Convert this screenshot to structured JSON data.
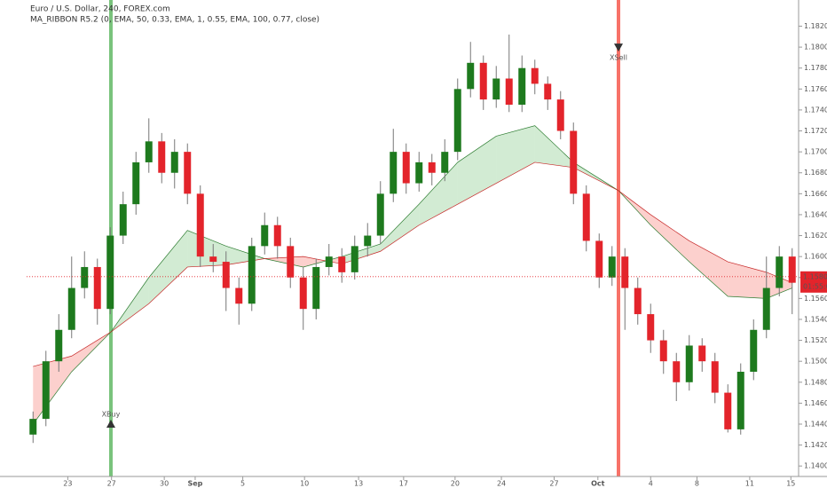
{
  "chart_data": {
    "type": "candlestick",
    "title": "Euro / U.S. Dollar, 240, FOREX.com",
    "subtitle": "MA_RIBBON R5.2 (0, EMA, 50, 0.33, EMA, 1, 0.55, EMA, 100, 0.77, close)",
    "up_color": "#1e7a1e",
    "down_color": "#e3242b",
    "xlim": [
      -0.5,
      59.5
    ],
    "ylim": [
      1.139,
      1.1845
    ],
    "xticks": [
      {
        "value": 2.7,
        "label": "23"
      },
      {
        "value": 6.1,
        "label": "27"
      },
      {
        "value": 10.2,
        "label": "30"
      },
      {
        "value": 12.6,
        "label": "Sep"
      },
      {
        "value": 16.3,
        "label": "5"
      },
      {
        "value": 21.1,
        "label": "10"
      },
      {
        "value": 25.3,
        "label": "13"
      },
      {
        "value": 28.8,
        "label": "17"
      },
      {
        "value": 32.8,
        "label": "20"
      },
      {
        "value": 36.4,
        "label": "24"
      },
      {
        "value": 40.5,
        "label": "27"
      },
      {
        "value": 43.9,
        "label": "Oct"
      },
      {
        "value": 48,
        "label": "4"
      },
      {
        "value": 51.6,
        "label": "8"
      },
      {
        "value": 55.7,
        "label": "11"
      },
      {
        "value": 58.9,
        "label": "15"
      }
    ],
    "yticks": [
      {
        "value": 1.14,
        "label": "1.14000"
      },
      {
        "value": 1.142,
        "label": "1.14200"
      },
      {
        "value": 1.144,
        "label": "1.14400"
      },
      {
        "value": 1.146,
        "label": "1.14600"
      },
      {
        "value": 1.148,
        "label": "1.14800"
      },
      {
        "value": 1.15,
        "label": "1.15000"
      },
      {
        "value": 1.152,
        "label": "1.15200"
      },
      {
        "value": 1.154,
        "label": "1.15400"
      },
      {
        "value": 1.156,
        "label": "1.15600"
      },
      {
        "value": 1.158,
        "label": "1.15800"
      },
      {
        "value": 1.16,
        "label": "1.16000"
      },
      {
        "value": 1.162,
        "label": "1.16200"
      },
      {
        "value": 1.164,
        "label": "1.16400"
      },
      {
        "value": 1.166,
        "label": "1.16600"
      },
      {
        "value": 1.168,
        "label": "1.16800"
      },
      {
        "value": 1.17,
        "label": "1.17000"
      },
      {
        "value": 1.172,
        "label": "1.17200"
      },
      {
        "value": 1.174,
        "label": "1.17400"
      },
      {
        "value": 1.176,
        "label": "1.17600"
      },
      {
        "value": 1.178,
        "label": "1.17800"
      },
      {
        "value": 1.18,
        "label": "1.18000"
      },
      {
        "value": 1.182,
        "label": "1.18200"
      }
    ],
    "open": [
      1.143,
      1.1445,
      1.15,
      1.153,
      1.157,
      1.159,
      1.155,
      1.162,
      1.165,
      1.169,
      1.171,
      1.168,
      1.17,
      1.166,
      1.16,
      1.1595,
      1.157,
      1.1555,
      1.161,
      1.163,
      1.161,
      1.158,
      1.155,
      1.159,
      1.16,
      1.1585,
      1.161,
      1.162,
      1.166,
      1.17,
      1.167,
      1.169,
      1.168,
      1.17,
      1.176,
      1.1785,
      1.175,
      1.177,
      1.1745,
      1.178,
      1.1765,
      1.175,
      1.172,
      1.166,
      1.1615,
      1.158,
      1.16,
      1.157,
      1.1545,
      1.152,
      1.15,
      1.148,
      1.1515,
      1.15,
      1.147,
      1.1435,
      1.149,
      1.153,
      1.157,
      1.16
    ],
    "high": [
      1.1452,
      1.151,
      1.1545,
      1.16,
      1.1605,
      1.1598,
      1.1628,
      1.1662,
      1.17,
      1.1732,
      1.1718,
      1.1712,
      1.1708,
      1.1668,
      1.1612,
      1.1605,
      1.158,
      1.1618,
      1.1642,
      1.1638,
      1.1618,
      1.159,
      1.1598,
      1.1612,
      1.1608,
      1.162,
      1.1632,
      1.1672,
      1.1722,
      1.1708,
      1.17,
      1.1698,
      1.1712,
      1.177,
      1.1805,
      1.1792,
      1.1782,
      1.1812,
      1.1792,
      1.1788,
      1.1772,
      1.1758,
      1.1728,
      1.1668,
      1.1622,
      1.161,
      1.1608,
      1.158,
      1.1555,
      1.153,
      1.1508,
      1.1525,
      1.1522,
      1.1508,
      1.1478,
      1.1498,
      1.154,
      1.16,
      1.161,
      1.1608
    ],
    "low": [
      1.1422,
      1.1438,
      1.149,
      1.1522,
      1.156,
      1.1535,
      1.1545,
      1.1612,
      1.164,
      1.168,
      1.167,
      1.1665,
      1.165,
      1.159,
      1.1585,
      1.1548,
      1.1535,
      1.1548,
      1.1602,
      1.1598,
      1.157,
      1.153,
      1.154,
      1.1582,
      1.1575,
      1.1578,
      1.16,
      1.1612,
      1.1652,
      1.166,
      1.1662,
      1.1668,
      1.1672,
      1.1692,
      1.1752,
      1.174,
      1.1742,
      1.1738,
      1.1738,
      1.1755,
      1.174,
      1.1712,
      1.165,
      1.1605,
      1.157,
      1.1572,
      1.153,
      1.1535,
      1.1508,
      1.1488,
      1.1462,
      1.1472,
      1.149,
      1.146,
      1.1432,
      1.143,
      1.1482,
      1.1522,
      1.1562,
      1.1545
    ],
    "close": [
      1.1445,
      1.15,
      1.153,
      1.157,
      1.159,
      1.155,
      1.162,
      1.165,
      1.169,
      1.171,
      1.168,
      1.17,
      1.166,
      1.16,
      1.1595,
      1.157,
      1.1555,
      1.161,
      1.163,
      1.161,
      1.158,
      1.155,
      1.159,
      1.16,
      1.1585,
      1.161,
      1.162,
      1.166,
      1.17,
      1.167,
      1.169,
      1.168,
      1.17,
      1.176,
      1.1785,
      1.175,
      1.177,
      1.1745,
      1.178,
      1.1765,
      1.175,
      1.172,
      1.166,
      1.1615,
      1.158,
      1.16,
      1.157,
      1.1545,
      1.152,
      1.15,
      1.148,
      1.1515,
      1.15,
      1.147,
      1.1435,
      1.149,
      1.153,
      1.157,
      1.16,
      1.1575
    ],
    "ribbon": {
      "x": [
        0,
        3,
        6.05,
        9,
        12,
        15,
        18,
        21,
        24,
        27,
        30,
        33,
        36,
        39,
        42,
        45.5,
        48,
        51,
        54,
        57,
        59
      ],
      "fast": [
        1.144,
        1.149,
        1.1528,
        1.158,
        1.1625,
        1.161,
        1.1598,
        1.159,
        1.16,
        1.1612,
        1.165,
        1.169,
        1.1715,
        1.1725,
        1.169,
        1.1663,
        1.163,
        1.1595,
        1.1562,
        1.156,
        1.157
      ],
      "slow": [
        1.1495,
        1.1505,
        1.1528,
        1.1555,
        1.159,
        1.1592,
        1.1598,
        1.16,
        1.1593,
        1.1605,
        1.163,
        1.165,
        1.167,
        1.169,
        1.1685,
        1.1663,
        1.164,
        1.1615,
        1.1595,
        1.1585,
        1.1575
      ],
      "up_color": "#4caf50",
      "down_color": "#f44336"
    },
    "signals": [
      {
        "label": "XBuy",
        "x": 6.05,
        "price": 1.144,
        "color": "#4caf50",
        "direction": "up"
      },
      {
        "label": "XSell",
        "x": 45.5,
        "price": 1.18,
        "color": "#f44336",
        "direction": "down"
      }
    ],
    "last_price": {
      "value": 1.15808,
      "label": "1.15808",
      "countdown": "01:55:04"
    }
  }
}
